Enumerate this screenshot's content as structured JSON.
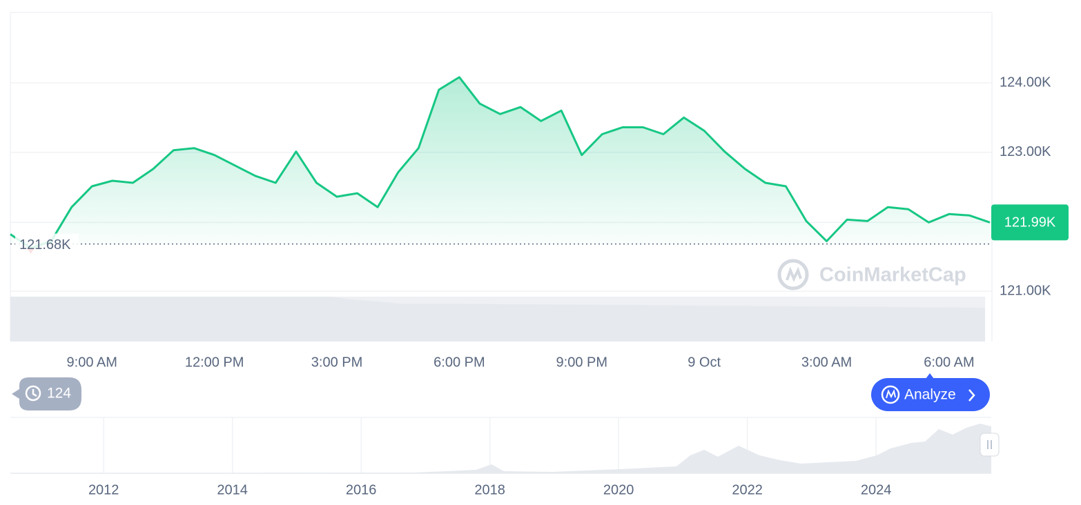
{
  "chart_data": {
    "type": "line",
    "x": [
      7,
      7.5,
      8,
      8.5,
      9,
      9.5,
      10,
      10.5,
      11,
      11.5,
      12,
      12.5,
      13,
      13.5,
      14,
      14.5,
      15,
      15.5,
      16,
      16.5,
      17,
      17.5,
      18,
      18.5,
      19,
      19.5,
      20,
      20.5,
      21,
      21.5,
      22,
      22.5,
      23,
      23.5,
      24,
      24.5,
      25,
      25.5,
      26,
      26.5,
      27,
      27.5,
      28,
      28.5,
      29,
      29.5,
      30,
      30.5,
      31
    ],
    "values": [
      121820,
      121620,
      121720,
      122210,
      122510,
      122590,
      122560,
      122760,
      123030,
      123060,
      122960,
      122810,
      122660,
      122560,
      123010,
      122560,
      122360,
      122410,
      122210,
      122710,
      123060,
      123900,
      124080,
      123700,
      123550,
      123650,
      123450,
      123600,
      122960,
      123260,
      123360,
      123360,
      123260,
      123500,
      123310,
      123010,
      122760,
      122560,
      122510,
      122010,
      121720,
      122030,
      122010,
      122210,
      122180,
      121990,
      122110,
      122090,
      121990
    ],
    "color": "#16c784",
    "xlim": [
      7,
      31.05
    ],
    "xticks": [
      {
        "value": 9,
        "label": "9:00 AM"
      },
      {
        "value": 12,
        "label": "12:00 PM"
      },
      {
        "value": 15,
        "label": "3:00 PM"
      },
      {
        "value": 18,
        "label": "6:00 PM"
      },
      {
        "value": 21,
        "label": "9:00 PM"
      },
      {
        "value": 24,
        "label": "9 Oct"
      },
      {
        "value": 27,
        "label": "3:00 AM"
      },
      {
        "value": 30,
        "label": "6:00 AM"
      }
    ],
    "ylim": [
      120276,
      125013
    ],
    "yticks": [
      {
        "value": 124000,
        "label": "124.00K"
      },
      {
        "value": 123000,
        "label": "123.00K"
      },
      {
        "value": 121000,
        "label": "121.00K"
      }
    ],
    "grid": true,
    "open_price": {
      "value": 121680,
      "label": "121.68K"
    },
    "current_price": {
      "value": 121990,
      "label": "121.99K"
    },
    "watermark": "CoinMarketCap",
    "overview": {
      "xlim": [
        2010.55,
        2025.79
      ],
      "xticks": [
        2012,
        2014,
        2016,
        2018,
        2020,
        2022,
        2024
      ]
    }
  },
  "controls": {
    "history_count": "124",
    "analyze_button": "Analyze"
  }
}
